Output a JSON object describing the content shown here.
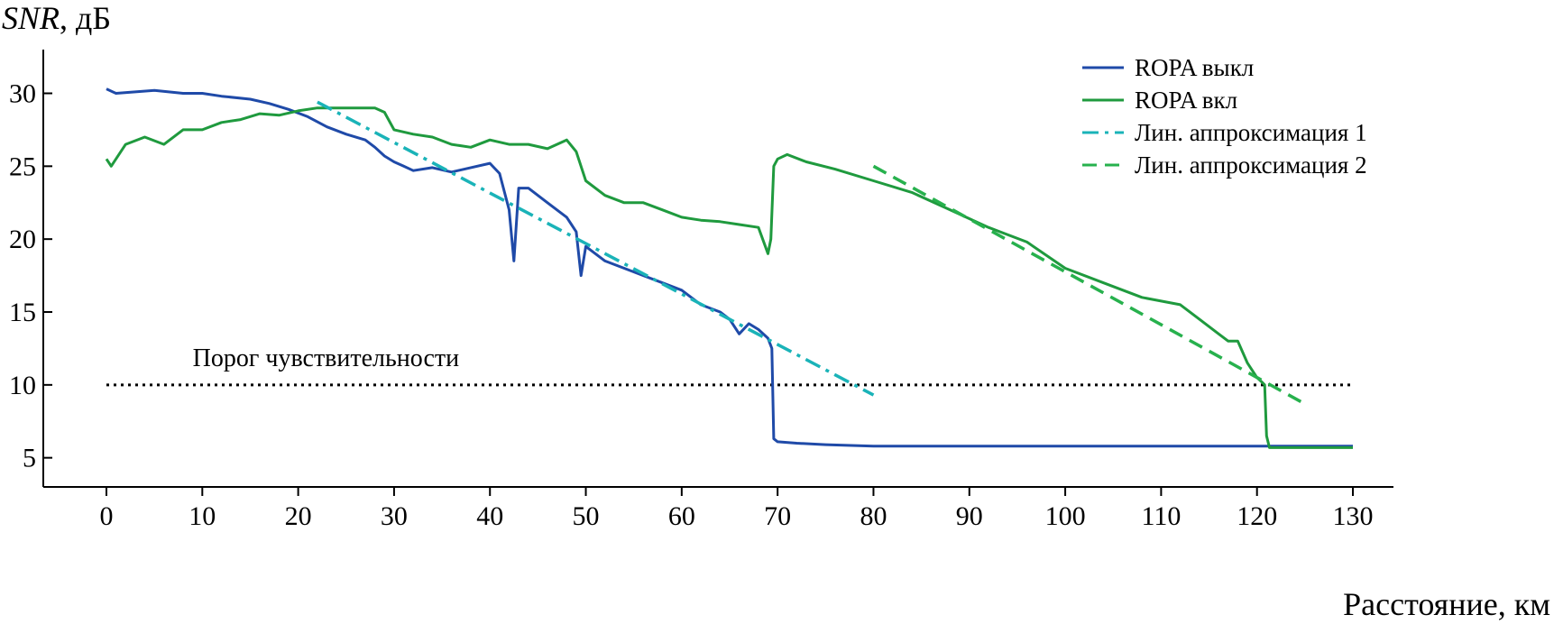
{
  "chart_data": {
    "type": "line",
    "ylabel_italic": "SNR",
    "ylabel_unit": ", дБ",
    "xlabel": "Расстояние, км",
    "xlim": [
      0,
      130
    ],
    "ylim": [
      3,
      33
    ],
    "xticks": [
      0,
      10,
      20,
      30,
      40,
      50,
      60,
      70,
      80,
      90,
      100,
      110,
      120,
      130
    ],
    "yticks": [
      5,
      10,
      15,
      20,
      25,
      30
    ],
    "grid": false,
    "legend_position": "top-right",
    "colors": {
      "ropa_off": "#1f4aa8",
      "ropa_on": "#1f9a3e",
      "fit1": "#1ab3b8",
      "fit2": "#27b14d",
      "threshold": "#000000"
    },
    "series": [
      {
        "name": "ROPA выкл",
        "style": "solid",
        "x": [
          0,
          1,
          3,
          5,
          8,
          10,
          12,
          15,
          17,
          19,
          21,
          23,
          25,
          27,
          28,
          29,
          30,
          31,
          32,
          34,
          36,
          38,
          40,
          41,
          42,
          42.5,
          43,
          44,
          46,
          48,
          49,
          49.5,
          50,
          52,
          54,
          56,
          58,
          60,
          62,
          64,
          65,
          66,
          67,
          68,
          69,
          69.4,
          69.6,
          70,
          72,
          75,
          80,
          90,
          100,
          110,
          120,
          125,
          130
        ],
        "y": [
          30.3,
          30,
          30.1,
          30.2,
          30,
          30,
          29.8,
          29.6,
          29.3,
          28.9,
          28.4,
          27.7,
          27.2,
          26.8,
          26.3,
          25.7,
          25.3,
          25,
          24.7,
          24.9,
          24.6,
          24.9,
          25.2,
          24.5,
          22,
          18.5,
          23.5,
          23.5,
          22.5,
          21.5,
          20.5,
          17.5,
          19.5,
          18.5,
          18,
          17.5,
          17,
          16.5,
          15.5,
          15,
          14.5,
          13.5,
          14.2,
          13.8,
          13.2,
          12.5,
          6.3,
          6.1,
          6,
          5.9,
          5.8,
          5.8,
          5.8,
          5.8,
          5.8,
          5.8,
          5.8
        ]
      },
      {
        "name": "ROPA вкл",
        "style": "solid",
        "x": [
          0,
          0.5,
          2,
          4,
          6,
          8,
          10,
          12,
          14,
          16,
          18,
          20,
          22,
          24,
          26,
          28,
          29,
          30,
          32,
          34,
          36,
          38,
          40,
          42,
          44,
          46,
          48,
          49,
          50,
          52,
          54,
          56,
          58,
          60,
          62,
          64,
          66,
          68,
          69,
          69.3,
          69.6,
          70,
          71,
          73,
          76,
          80,
          84,
          88,
          92,
          96,
          100,
          104,
          108,
          112,
          114,
          116,
          117,
          118,
          119,
          120,
          120.5,
          120.8,
          121,
          121.3,
          125,
          130
        ],
        "y": [
          25.5,
          25,
          26.5,
          27,
          26.5,
          27.5,
          27.5,
          28,
          28.2,
          28.6,
          28.5,
          28.8,
          29,
          29,
          29,
          29,
          28.7,
          27.5,
          27.2,
          27,
          26.5,
          26.3,
          26.8,
          26.5,
          26.5,
          26.2,
          26.8,
          26,
          24,
          23,
          22.5,
          22.5,
          22,
          21.5,
          21.3,
          21.2,
          21,
          20.8,
          19,
          20,
          25,
          25.5,
          25.8,
          25.3,
          24.8,
          24,
          23.2,
          22,
          20.8,
          19.8,
          18,
          17,
          16,
          15.5,
          14.5,
          13.5,
          13,
          13,
          11.5,
          10.5,
          10.2,
          10,
          6.5,
          5.7,
          5.7,
          5.7
        ]
      },
      {
        "name": "Лин. аппроксимация 1",
        "style": "dashdot",
        "x": [
          22,
          80
        ],
        "y": [
          29.4,
          9.3
        ]
      },
      {
        "name": "Лин. аппроксимация 2",
        "style": "dashed",
        "x": [
          80,
          125
        ],
        "y": [
          25,
          8.7
        ]
      }
    ],
    "annotations": [
      {
        "text": "Порог чувствительности",
        "line_y": 10,
        "line_x": [
          0,
          130
        ],
        "style": "dotted",
        "text_x": 9,
        "text_y": 11.3
      }
    ]
  }
}
